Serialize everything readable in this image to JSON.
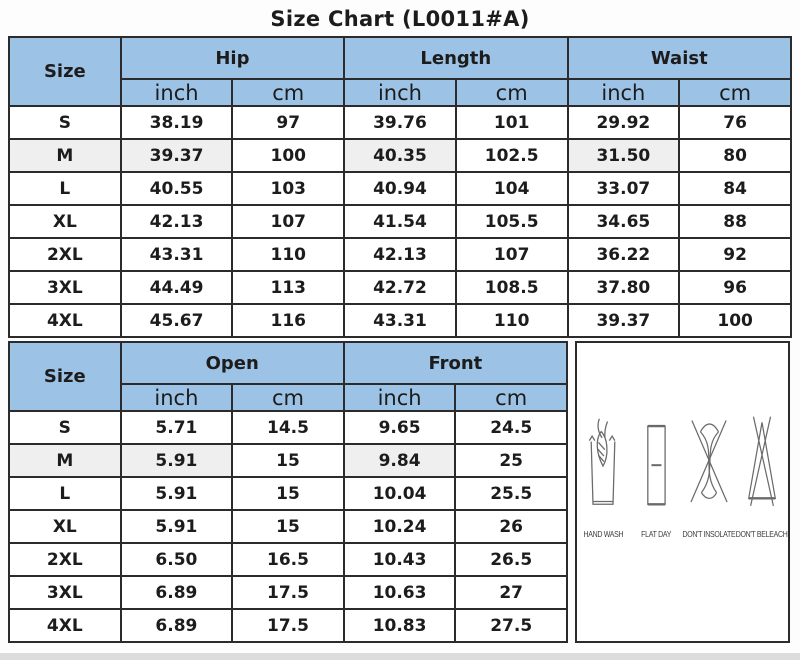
{
  "title": "Size Chart (L0011#A)",
  "colors": {
    "header_bg": "#9CC2E5",
    "shaded_bg": "#EFEFEF",
    "border": "#2B2B2B",
    "text": "#1C1C1C"
  },
  "chart_data": [
    {
      "type": "table",
      "name": "body-measurements",
      "groups": [
        {
          "label": "Size",
          "span": 1
        },
        {
          "label": "Hip",
          "span": 2
        },
        {
          "label": "Length",
          "span": 2
        },
        {
          "label": "Waist",
          "span": 2
        }
      ],
      "units_row": [
        "inch",
        "cm",
        "inch",
        "cm",
        "inch",
        "cm"
      ],
      "rows": [
        [
          "S",
          "38.19",
          "97",
          "39.76",
          "101",
          "29.92",
          "76"
        ],
        [
          "M",
          "39.37",
          "100",
          "40.35",
          "102.5",
          "31.50",
          "80"
        ],
        [
          "L",
          "40.55",
          "103",
          "40.94",
          "104",
          "33.07",
          "84"
        ],
        [
          "XL",
          "42.13",
          "107",
          "41.54",
          "105.5",
          "34.65",
          "88"
        ],
        [
          "2XL",
          "43.31",
          "110",
          "42.13",
          "107",
          "36.22",
          "92"
        ],
        [
          "3XL",
          "44.49",
          "113",
          "42.72",
          "108.5",
          "37.80",
          "96"
        ],
        [
          "4XL",
          "45.67",
          "116",
          "43.31",
          "110",
          "39.37",
          "100"
        ]
      ],
      "shaded_row_index": 1,
      "shaded_cell_indices": [
        0,
        1,
        3,
        5
      ]
    },
    {
      "type": "table",
      "name": "garment-measurements",
      "groups": [
        {
          "label": "Size",
          "span": 1
        },
        {
          "label": "Open",
          "span": 2
        },
        {
          "label": "Front",
          "span": 2
        }
      ],
      "units_row": [
        "inch",
        "cm",
        "inch",
        "cm"
      ],
      "rows": [
        [
          "S",
          "5.71",
          "14.5",
          "9.65",
          "24.5"
        ],
        [
          "M",
          "5.91",
          "15",
          "9.84",
          "25"
        ],
        [
          "L",
          "5.91",
          "15",
          "10.04",
          "25.5"
        ],
        [
          "XL",
          "5.91",
          "15",
          "10.24",
          "26"
        ],
        [
          "2XL",
          "6.50",
          "16.5",
          "10.43",
          "26.5"
        ],
        [
          "3XL",
          "6.89",
          "17.5",
          "10.63",
          "27"
        ],
        [
          "4XL",
          "6.89",
          "17.5",
          "10.83",
          "27.5"
        ]
      ],
      "shaded_row_index": 1,
      "shaded_cell_indices": [
        0,
        1,
        3
      ]
    }
  ],
  "care_symbols": {
    "items": [
      {
        "icon": "hand-wash-icon",
        "label": "HAND WASH"
      },
      {
        "icon": "flat-dry-icon",
        "label": "FLAT DAY"
      },
      {
        "icon": "dont-insolate-icon",
        "label": "DON'T INSOLATE"
      },
      {
        "icon": "dont-bleach-icon",
        "label": "DON'T BELEACH"
      }
    ]
  }
}
